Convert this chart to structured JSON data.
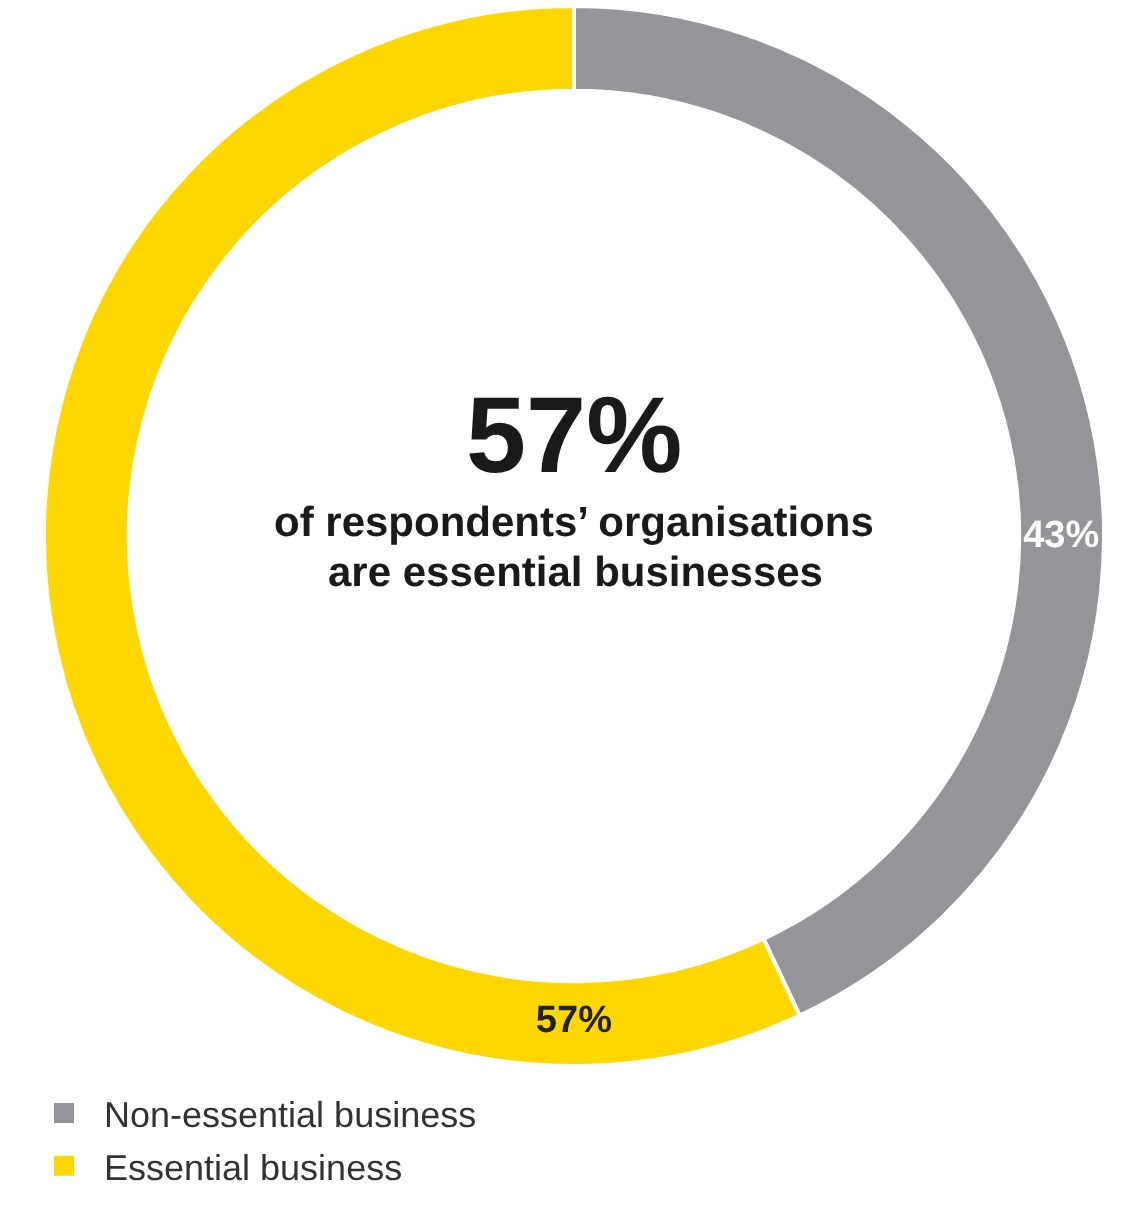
{
  "chart_data": {
    "type": "donut",
    "categories": [
      "Non-essential business",
      "Essential business"
    ],
    "values": [
      43,
      57
    ],
    "colors": [
      "#939598",
      "#ffd700"
    ],
    "value_labels": [
      "43%",
      "57%"
    ],
    "annotations": [
      "57%",
      "of respondents’ organisations",
      "are essential businesses"
    ],
    "legend": "bottom"
  }
}
